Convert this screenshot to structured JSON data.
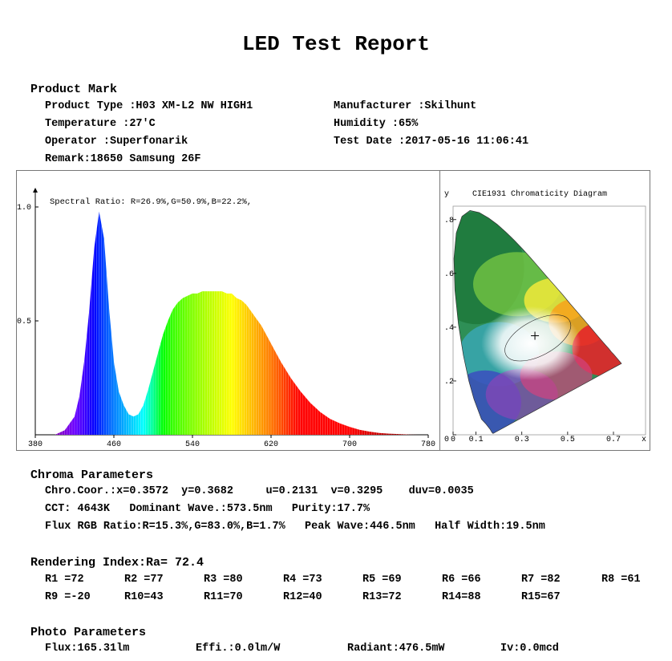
{
  "report_title": "LED Test Report",
  "product_mark": {
    "heading": "Product Mark",
    "product_type": "Product Type :H03 XM-L2 NW HIGH1",
    "manufacturer": "Manufacturer :Skilhunt",
    "temperature": "Temperature :27'C",
    "humidity": "Humidity :65%",
    "operator": "Operator :Superfonarik",
    "test_date": "Test Date :2017-05-16 11:06:41",
    "remark": "Remark:18650 Samsung 26F"
  },
  "chart_data": [
    {
      "type": "area",
      "title": "",
      "annotation": "Spectral Ratio:  R=26.9%,G=50.9%,B=22.2%,",
      "xlim": [
        380,
        780
      ],
      "ylim": [
        0,
        1.0
      ],
      "x_ticks": [
        "380",
        "460",
        "540",
        "620",
        "700",
        "780"
      ],
      "y_ticks": [
        "1.0",
        "0.5"
      ],
      "x": [
        400,
        410,
        420,
        425,
        430,
        435,
        440,
        445,
        450,
        455,
        460,
        465,
        470,
        475,
        480,
        485,
        490,
        495,
        500,
        505,
        510,
        515,
        520,
        525,
        530,
        535,
        540,
        545,
        550,
        555,
        560,
        565,
        570,
        575,
        580,
        585,
        590,
        595,
        600,
        605,
        610,
        615,
        620,
        625,
        630,
        640,
        650,
        660,
        670,
        680,
        690,
        700,
        710,
        720,
        730,
        740,
        750,
        760,
        770,
        780
      ],
      "values": [
        0.0,
        0.02,
        0.08,
        0.17,
        0.33,
        0.55,
        0.82,
        0.98,
        0.86,
        0.56,
        0.32,
        0.19,
        0.13,
        0.09,
        0.08,
        0.09,
        0.13,
        0.2,
        0.28,
        0.36,
        0.44,
        0.5,
        0.55,
        0.58,
        0.6,
        0.61,
        0.62,
        0.62,
        0.63,
        0.63,
        0.63,
        0.63,
        0.63,
        0.62,
        0.62,
        0.6,
        0.59,
        0.57,
        0.54,
        0.51,
        0.48,
        0.44,
        0.4,
        0.36,
        0.32,
        0.25,
        0.19,
        0.14,
        0.1,
        0.07,
        0.05,
        0.035,
        0.022,
        0.014,
        0.008,
        0.005,
        0.003,
        0.001,
        0.0,
        0.0
      ]
    },
    {
      "type": "scatter",
      "title": "CIE1931 Chromaticity Diagram",
      "ylabel": "y",
      "xlabel": "x",
      "xlim": [
        0,
        0.8
      ],
      "ylim": [
        0,
        0.85
      ],
      "x_ticks": [
        "0",
        "0.1",
        "0.3",
        "0.5",
        "0.7"
      ],
      "y_ticks": [
        ".8",
        ".6",
        ".4",
        ".2",
        "0"
      ],
      "point": {
        "x": 0.3572,
        "y": 0.3682
      }
    }
  ],
  "chroma": {
    "heading": "Chroma Parameters",
    "line1": "Chro.Coor.:x=0.3572  y=0.3682     u=0.2131  v=0.3295    duv=0.0035",
    "line2": "CCT: 4643K   Dominant Wave.:573.5nm   Purity:17.7%",
    "line3": "Flux RGB Ratio:R=15.3%,G=83.0%,B=1.7%   Peak Wave:446.5nm   Half Width:19.5nm"
  },
  "rendering": {
    "heading": "Rendering Index:Ra= 72.4",
    "row1": [
      "R1 =72",
      "R2 =77",
      "R3 =80",
      "R4 =73",
      "R5 =69",
      "R6 =66",
      "R7 =82",
      "R8 =61"
    ],
    "row2": [
      "R9 =-20",
      "R10=43",
      "R11=70",
      "R12=40",
      "R13=72",
      "R14=88",
      "R15=67"
    ]
  },
  "photo": {
    "heading": "Photo Parameters",
    "flux": "Flux:165.31lm",
    "effi": "Effi.:0.0lm/W",
    "radiant": "Radiant:476.5mW",
    "iv": "Iv:0.0mcd"
  }
}
